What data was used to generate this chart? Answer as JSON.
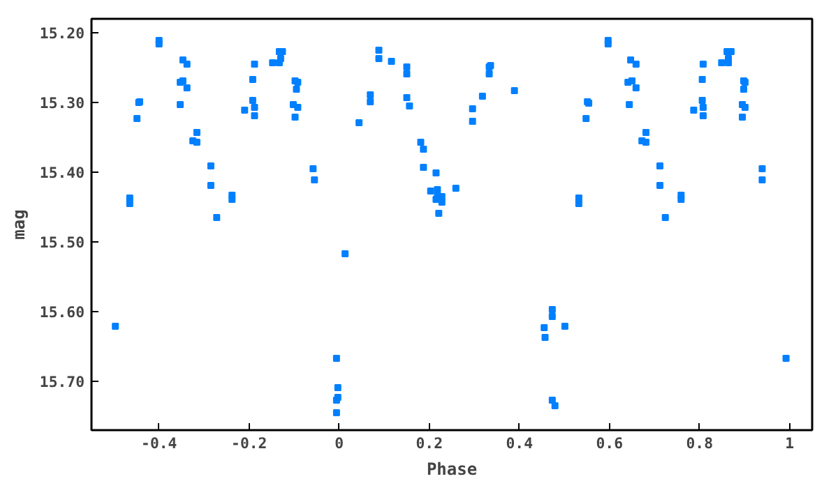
{
  "chart_data": {
    "type": "scatter",
    "xlabel": "Phase",
    "ylabel": "mag",
    "marker": "square",
    "grid": false,
    "xlim": [
      -0.55,
      1.05
    ],
    "ylim": [
      15.77,
      15.18
    ],
    "xticks": [
      -0.4,
      -0.2,
      0,
      0.2,
      0.4,
      0.6,
      0.8,
      1
    ],
    "yticks": [
      {
        "value": 15.2,
        "label": "15.20"
      },
      {
        "value": 15.3,
        "label": "15.30"
      },
      {
        "value": 15.4,
        "label": "15.40"
      },
      {
        "value": 15.5,
        "label": "15.50"
      },
      {
        "value": 15.6,
        "label": "15.60"
      },
      {
        "value": 15.7,
        "label": "15.70"
      }
    ],
    "series": [
      {
        "color": "#0080ff",
        "x": [
          -0.497,
          -0.465,
          -0.465,
          -0.449,
          -0.445,
          -0.443,
          -0.4,
          -0.4,
          -0.347,
          -0.338,
          -0.353,
          -0.347,
          -0.338,
          -0.353,
          -0.316,
          -0.325,
          -0.316,
          -0.285,
          -0.285,
          -0.272,
          -0.238,
          -0.238,
          -0.21,
          -0.192,
          -0.188,
          -0.188,
          -0.192,
          -0.188,
          -0.148,
          -0.133,
          -0.133,
          -0.126,
          -0.13,
          -0.098,
          -0.092,
          -0.095,
          -0.102,
          -0.092,
          -0.098,
          -0.058,
          -0.055,
          0.013,
          -0.006,
          -0.003,
          -0.003,
          -0.006,
          -0.006,
          0.044,
          0.069,
          0.069,
          0.088,
          0.088,
          0.116,
          0.15,
          0.15,
          0.15,
          0.156,
          0.181,
          0.187,
          0.187,
          0.215,
          0.203,
          0.218,
          0.218,
          0.228,
          0.215,
          0.228,
          0.221,
          0.259,
          0.296,
          0.296,
          0.318,
          0.333,
          0.333,
          0.336,
          0.389,
          0.455,
          0.457,
          0.473,
          0.473,
          0.501,
          0.473,
          0.479,
          0.532,
          0.532,
          0.548,
          0.551,
          0.554,
          0.597,
          0.597,
          0.647,
          0.659,
          0.641,
          0.65,
          0.659,
          0.644,
          0.681,
          0.672,
          0.681,
          0.712,
          0.712,
          0.724,
          0.759,
          0.759,
          0.787,
          0.806,
          0.808,
          0.808,
          0.806,
          0.808,
          0.849,
          0.861,
          0.87,
          0.864,
          0.864,
          0.898,
          0.901,
          0.898,
          0.895,
          0.901,
          0.895,
          0.939,
          0.939,
          0.992
        ],
        "values": [
          15.621,
          15.437,
          15.445,
          15.323,
          15.3,
          15.299,
          15.211,
          15.216,
          15.239,
          15.245,
          15.271,
          15.269,
          15.279,
          15.303,
          15.343,
          15.355,
          15.357,
          15.391,
          15.419,
          15.465,
          15.433,
          15.439,
          15.311,
          15.297,
          15.307,
          15.319,
          15.267,
          15.245,
          15.243,
          15.243,
          15.227,
          15.227,
          15.237,
          15.269,
          15.271,
          15.281,
          15.303,
          15.307,
          15.321,
          15.395,
          15.411,
          15.517,
          15.667,
          15.709,
          15.723,
          15.727,
          15.745,
          15.329,
          15.289,
          15.299,
          15.225,
          15.237,
          15.241,
          15.249,
          15.259,
          15.293,
          15.305,
          15.357,
          15.367,
          15.393,
          15.401,
          15.427,
          15.425,
          15.433,
          15.435,
          15.439,
          15.443,
          15.459,
          15.423,
          15.309,
          15.327,
          15.291,
          15.249,
          15.259,
          15.247,
          15.283,
          15.623,
          15.637,
          15.597,
          15.607,
          15.621,
          15.727,
          15.735,
          15.437,
          15.445,
          15.323,
          15.299,
          15.301,
          15.211,
          15.216,
          15.239,
          15.245,
          15.271,
          15.269,
          15.279,
          15.303,
          15.343,
          15.355,
          15.357,
          15.391,
          15.419,
          15.465,
          15.433,
          15.439,
          15.311,
          15.297,
          15.307,
          15.319,
          15.267,
          15.245,
          15.243,
          15.227,
          15.227,
          15.237,
          15.243,
          15.269,
          15.271,
          15.281,
          15.303,
          15.307,
          15.321,
          15.395,
          15.411,
          15.667
        ]
      }
    ]
  }
}
